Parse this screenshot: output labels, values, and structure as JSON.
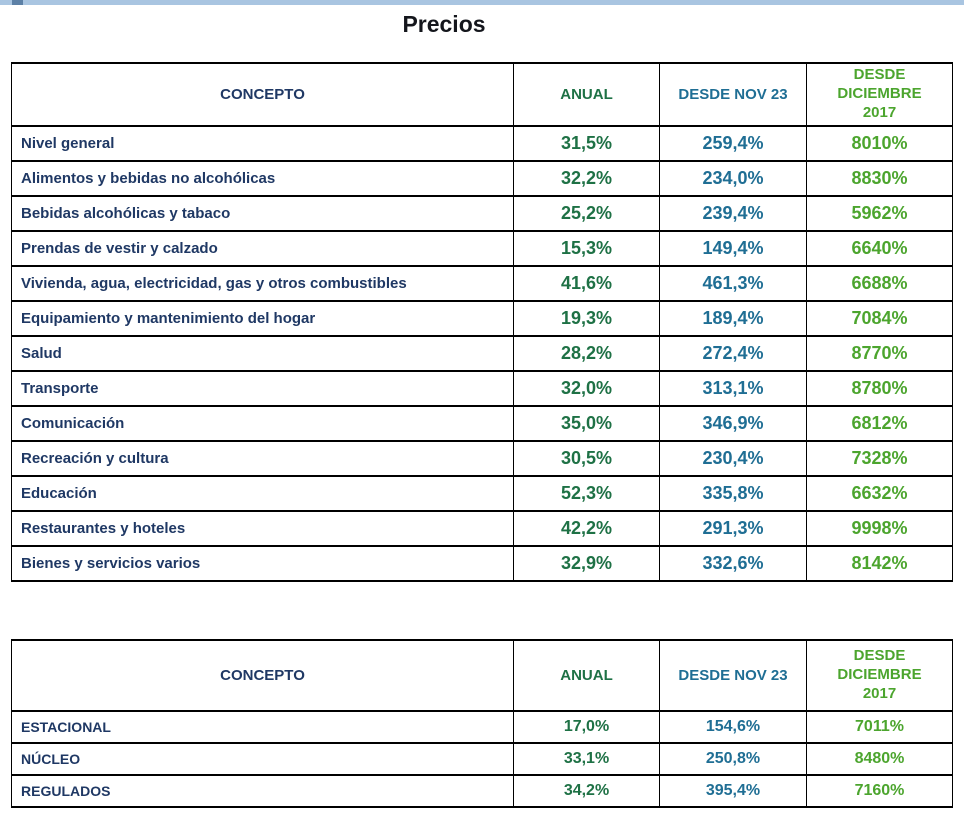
{
  "page": {
    "title": "Precios"
  },
  "colors": {
    "navy": "#1F3864",
    "dark-green": "#1E7145",
    "teal": "#1F6E94",
    "green": "#4CA52E",
    "grid-border": "#000000",
    "title-text": "#14161C",
    "scrollbar-track": "#A9C5E1",
    "scrollbar-thumb": "#5C80A6"
  },
  "tables": [
    {
      "name": "precios-por-division",
      "columns": [
        "CONCEPTO",
        "ANUAL",
        "DESDE NOV 23",
        "DESDE DICIEMBRE 2017"
      ],
      "rows": [
        [
          "Nivel general",
          "31,5%",
          "259,4%",
          "8010%"
        ],
        [
          "Alimentos y bebidas no alcohólicas",
          "32,2%",
          "234,0%",
          "8830%"
        ],
        [
          "Bebidas alcohólicas y tabaco",
          "25,2%",
          "239,4%",
          "5962%"
        ],
        [
          "Prendas de vestir y calzado",
          "15,3%",
          "149,4%",
          "6640%"
        ],
        [
          "Vivienda, agua, electricidad, gas y otros combustibles",
          "41,6%",
          "461,3%",
          "6688%"
        ],
        [
          "Equipamiento y mantenimiento del hogar",
          "19,3%",
          "189,4%",
          "7084%"
        ],
        [
          "Salud",
          "28,2%",
          "272,4%",
          "8770%"
        ],
        [
          "Transporte",
          "32,0%",
          "313,1%",
          "8780%"
        ],
        [
          "Comunicación",
          "35,0%",
          "346,9%",
          "6812%"
        ],
        [
          "Recreación y cultura",
          "30,5%",
          "230,4%",
          "7328%"
        ],
        [
          "Educación",
          "52,3%",
          "335,8%",
          "6632%"
        ],
        [
          "Restaurantes y hoteles",
          "42,2%",
          "291,3%",
          "9998%"
        ],
        [
          "Bienes y servicios varios",
          "32,9%",
          "332,6%",
          "8142%"
        ]
      ]
    },
    {
      "name": "precios-por-categoria",
      "columns": [
        "CONCEPTO",
        "ANUAL",
        "DESDE NOV 23",
        "DESDE DICIEMBRE 2017"
      ],
      "rows": [
        [
          "ESTACIONAL",
          "17,0%",
          "154,6%",
          "7011%"
        ],
        [
          "NÚCLEO",
          "33,1%",
          "250,8%",
          "8480%"
        ],
        [
          "REGULADOS",
          "34,2%",
          "395,4%",
          "7160%"
        ]
      ]
    }
  ]
}
